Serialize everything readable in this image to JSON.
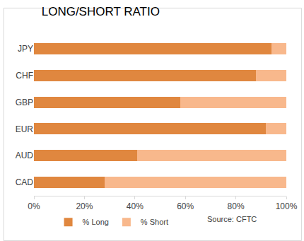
{
  "chart_data": {
    "type": "bar",
    "title": "LONG/SHORT RATIO",
    "orientation": "horizontal",
    "stacked": true,
    "grid": false,
    "legend": "bottom",
    "categories": [
      "JPY",
      "CHF",
      "GBP",
      "EUR",
      "AUD",
      "CAD"
    ],
    "series": [
      {
        "name": "% Long",
        "color": "#e0873f",
        "values": [
          94,
          88,
          58,
          92,
          41,
          28
        ]
      },
      {
        "name": "% Short",
        "color": "#f8b88c",
        "values": [
          6,
          12,
          42,
          8,
          59,
          72
        ]
      }
    ],
    "xlim": [
      0,
      100
    ],
    "xticks": [
      {
        "value": 0,
        "label": "0%"
      },
      {
        "value": 20,
        "label": "20%"
      },
      {
        "value": 40,
        "label": "40%"
      },
      {
        "value": 60,
        "label": "60%"
      },
      {
        "value": 80,
        "label": "80%"
      },
      {
        "value": 100,
        "label": "100%"
      }
    ],
    "annotations": [
      {
        "text": "Source: CFTC"
      }
    ]
  }
}
